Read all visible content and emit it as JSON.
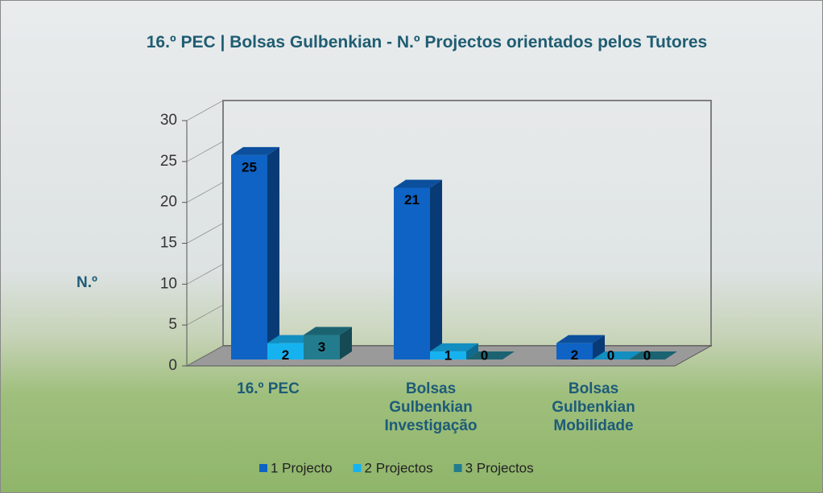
{
  "chart_data": {
    "type": "bar3d",
    "title": "16.º PEC | Bolsas Gulbenkian - N.º Projectos orientados pelos Tutores",
    "y_label": "N.º",
    "categories": [
      "16.º PEC",
      "Bolsas Gulbenkian Investigação",
      "Bolsas Gulbenkian Mobilidade"
    ],
    "series": [
      {
        "name": "1 Projecto",
        "color": "#0e63c4",
        "values": [
          25,
          21,
          2
        ]
      },
      {
        "name": "2 Projectos",
        "color": "#16b2f0",
        "values": [
          2,
          1,
          0
        ]
      },
      {
        "name": "3 Projectos",
        "color": "#237c8e",
        "values": [
          3,
          0,
          0
        ]
      }
    ],
    "ylim": [
      0,
      30
    ],
    "yticks": [
      0,
      5,
      10,
      15,
      20,
      25,
      30
    ],
    "legend": "bottom"
  }
}
